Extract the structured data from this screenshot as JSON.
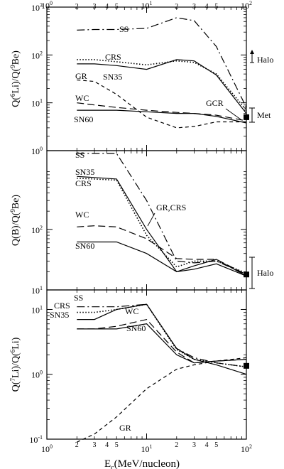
{
  "chart_data": {
    "type": "line",
    "x_axis": {
      "label": "E",
      "label_sub": "c",
      "label_rest": "(MeV/nucleon)",
      "scale": "log",
      "range": [
        1,
        100
      ],
      "major_ticks": [
        {
          "value": 1,
          "base": "10",
          "exp": "0"
        },
        {
          "value": 10,
          "base": "10",
          "exp": "1"
        },
        {
          "value": 100,
          "base": "10",
          "exp": "2"
        }
      ],
      "minor_ticks": [
        {
          "value": 2,
          "label": "2"
        },
        {
          "value": 3,
          "label": "3"
        },
        {
          "value": 4,
          "label": "4"
        },
        {
          "value": 5,
          "label": "5"
        },
        {
          "value": 20,
          "label": "2"
        },
        {
          "value": 30,
          "label": "3"
        },
        {
          "value": 40,
          "label": "4"
        },
        {
          "value": 50,
          "label": "5"
        }
      ],
      "unlabeled_minor": [
        6,
        7,
        8,
        9,
        60,
        70,
        80,
        90
      ]
    },
    "panels": [
      {
        "id": "li6-be9",
        "ylabel": {
          "pre": "Q(",
          "sup1": "6",
          "mid": "Li)/Q(",
          "sup2": "9",
          "post": "Be)"
        },
        "yscale": "log",
        "ylim": [
          1,
          1000
        ],
        "y_major_ticks": [
          {
            "value": 1,
            "base": "10",
            "exp": "0"
          },
          {
            "value": 10,
            "base": "10",
            "exp": "1"
          },
          {
            "value": 100,
            "base": "10",
            "exp": "2"
          },
          {
            "value": 1000,
            "base": "10",
            "exp": "3"
          }
        ],
        "series": [
          {
            "name": "SS",
            "style": "dashdot",
            "x": [
              2,
              3,
              5,
              10,
              20,
              30,
              50,
              100
            ],
            "y": [
              330,
              340,
              340,
              360,
              600,
              520,
              150,
              8
            ]
          },
          {
            "name": "CRS",
            "style": "dotted",
            "x": [
              2,
              3,
              5,
              10,
              20,
              30,
              50,
              100
            ],
            "y": [
              80,
              80,
              72,
              62,
              75,
              70,
              40,
              7
            ]
          },
          {
            "name": "SN35",
            "style": "solid",
            "x": [
              2,
              3,
              5,
              10,
              20,
              30,
              50,
              100
            ],
            "y": [
              65,
              65,
              60,
              50,
              80,
              75,
              38,
              6
            ]
          },
          {
            "name": "GR",
            "style": "dashed",
            "x": [
              2,
              3,
              5,
              10,
              20,
              30,
              50,
              100
            ],
            "y": [
              30,
              28,
              15,
              5,
              3,
              3.2,
              4,
              4
            ]
          },
          {
            "name": "WC",
            "style": "longdash",
            "x": [
              2,
              3,
              5,
              10,
              20,
              30,
              50,
              100
            ],
            "y": [
              10,
              9,
              8,
              7,
              6.3,
              6,
              5.5,
              4.2
            ]
          },
          {
            "name": "SN60",
            "style": "solid",
            "x": [
              2,
              3,
              5,
              10,
              20,
              30,
              50,
              100
            ],
            "y": [
              7,
              7,
              7,
              6.5,
              6,
              6,
              5.2,
              3.8
            ]
          }
        ],
        "labels": [
          "SS",
          "CRS",
          "GR",
          "SN35",
          "WC",
          "SN60",
          "GCR"
        ],
        "markers": {
          "label_top": "Halo",
          "label_bottom": "Met",
          "value": 5
        }
      },
      {
        "id": "b-be9",
        "ylabel": {
          "pre": "Q(B)/Q(",
          "sup1": "9",
          "mid": "Be)",
          "sup2": "",
          "post": ""
        },
        "yscale": "log",
        "ylim": [
          10,
          2000
        ],
        "y_major_ticks": [
          {
            "value": 10,
            "base": "10",
            "exp": "1"
          },
          {
            "value": 100,
            "base": "10",
            "exp": "2"
          }
        ],
        "series": [
          {
            "name": "SS",
            "style": "dashdot",
            "x": [
              2,
              3,
              5,
              10,
              20,
              30,
              50,
              100
            ],
            "y": [
              1800,
              1800,
              1800,
              300,
              30,
              28,
              30,
              18
            ]
          },
          {
            "name": "SN35",
            "style": "solid",
            "x": [
              2,
              3,
              5,
              10,
              20,
              30,
              50,
              100
            ],
            "y": [
              750,
              720,
              680,
              100,
              20,
              25,
              32,
              17
            ]
          },
          {
            "name": "CRS",
            "style": "dotted",
            "x": [
              2,
              3,
              5,
              10,
              20,
              30,
              50,
              100
            ],
            "y": [
              700,
              680,
              650,
              80,
              24,
              30,
              30,
              19
            ]
          },
          {
            "name": "WC",
            "style": "longdash",
            "x": [
              2,
              3,
              5,
              10,
              20,
              30,
              50,
              100
            ],
            "y": [
              110,
              115,
              110,
              70,
              33,
              32,
              32,
              18
            ]
          },
          {
            "name": "SN60",
            "style": "solid",
            "x": [
              2,
              3,
              5,
              10,
              20,
              30,
              50,
              100
            ],
            "y": [
              62,
              62,
              62,
              40,
              20,
              22,
              27,
              17
            ]
          }
        ],
        "labels": [
          "SS",
          "SN35",
          "CRS",
          "WC",
          "SN60",
          "GR,CRS"
        ],
        "markers": {
          "label": "Halo",
          "value": 18
        }
      },
      {
        "id": "li7-li6",
        "ylabel": {
          "pre": "Q(",
          "sup1": "7",
          "mid": "Li)/Q(",
          "sup2": "6",
          "post": "Li)"
        },
        "yscale": "log",
        "ylim": [
          0.1,
          20
        ],
        "y_major_ticks": [
          {
            "value": 0.1,
            "base": "10",
            "exp": "-1"
          },
          {
            "value": 1,
            "base": "10",
            "exp": "0"
          },
          {
            "value": 10,
            "base": "10",
            "exp": "1"
          }
        ],
        "series": [
          {
            "name": "SS",
            "style": "dashdot",
            "x": [
              2,
              3,
              5,
              10,
              20,
              30,
              50,
              100
            ],
            "y": [
              11,
              11,
              11,
              12,
              2.5,
              1.8,
              1.5,
              1.3
            ]
          },
          {
            "name": "CRS",
            "style": "dotted",
            "x": [
              2,
              3,
              5,
              10,
              20,
              30,
              50,
              100
            ],
            "y": [
              9,
              9,
              10,
              12,
              2.4,
              1.7,
              1.5,
              1.3
            ]
          },
          {
            "name": "SN35",
            "style": "solid",
            "x": [
              2,
              3,
              5,
              10,
              20,
              30,
              50,
              100
            ],
            "y": [
              7,
              7,
              10,
              12,
              2.5,
              1.7,
              1.4,
              1.0
            ]
          },
          {
            "name": "WC",
            "style": "longdash",
            "x": [
              2,
              3,
              5,
              10,
              20,
              30,
              50,
              100
            ],
            "y": [
              5,
              5,
              5.5,
              7,
              2.2,
              1.5,
              1.6,
              1.7
            ]
          },
          {
            "name": "SN60",
            "style": "solid",
            "x": [
              2,
              3,
              5,
              10,
              20,
              30,
              50,
              100
            ],
            "y": [
              5,
              5,
              5,
              6,
              2.0,
              1.5,
              1.6,
              1.7
            ]
          },
          {
            "name": "GR",
            "style": "dashed",
            "x": [
              2,
              3,
              5,
              10,
              20,
              30,
              50,
              100
            ],
            "y": [
              0.08,
              0.12,
              0.22,
              0.6,
              1.2,
              1.4,
              1.6,
              1.8
            ]
          }
        ],
        "labels": [
          "SS",
          "CRS",
          "SN35",
          "WC",
          "SN60",
          "GR"
        ],
        "markers": {
          "value": 1.35
        }
      }
    ],
    "grid": false,
    "legend": "none"
  }
}
